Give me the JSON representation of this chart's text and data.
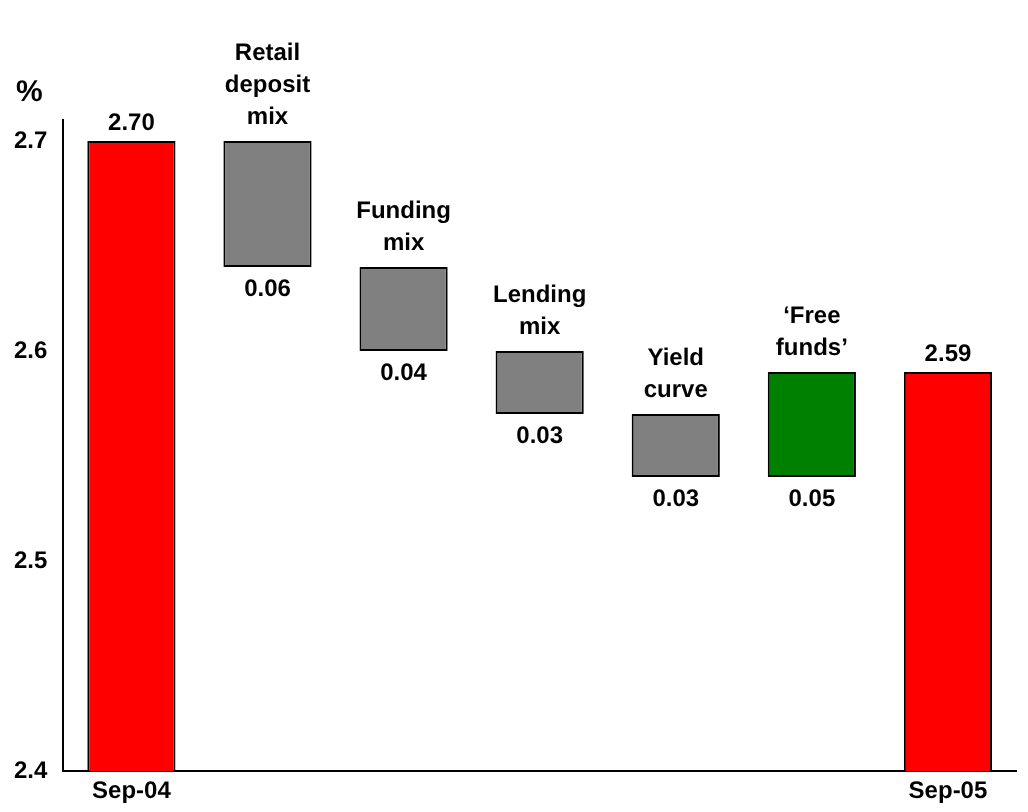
{
  "chart_data": {
    "type": "bar",
    "ylabel": "%",
    "categories": [
      "Sep-04",
      "Retail deposit mix",
      "Funding mix",
      "Lending mix",
      "Yield curve",
      "‘Free funds’",
      "Sep-05"
    ],
    "values": [
      2.7,
      -0.06,
      -0.04,
      -0.03,
      -0.03,
      0.05,
      2.59
    ],
    "base": [
      null,
      2.7,
      2.64,
      2.6,
      2.57,
      2.54,
      null
    ],
    "colors": [
      "#ff0000",
      "#808080",
      "#808080",
      "#808080",
      "#808080",
      "#008000",
      "#ff0000"
    ],
    "value_labels": [
      "2.70",
      "0.06",
      "0.04",
      "0.03",
      "0.03",
      "0.05",
      "2.59"
    ],
    "ylim": [
      2.4,
      2.71
    ],
    "yticks": [
      2.4,
      2.5,
      2.6,
      2.7
    ],
    "grid": false,
    "legend": false
  }
}
